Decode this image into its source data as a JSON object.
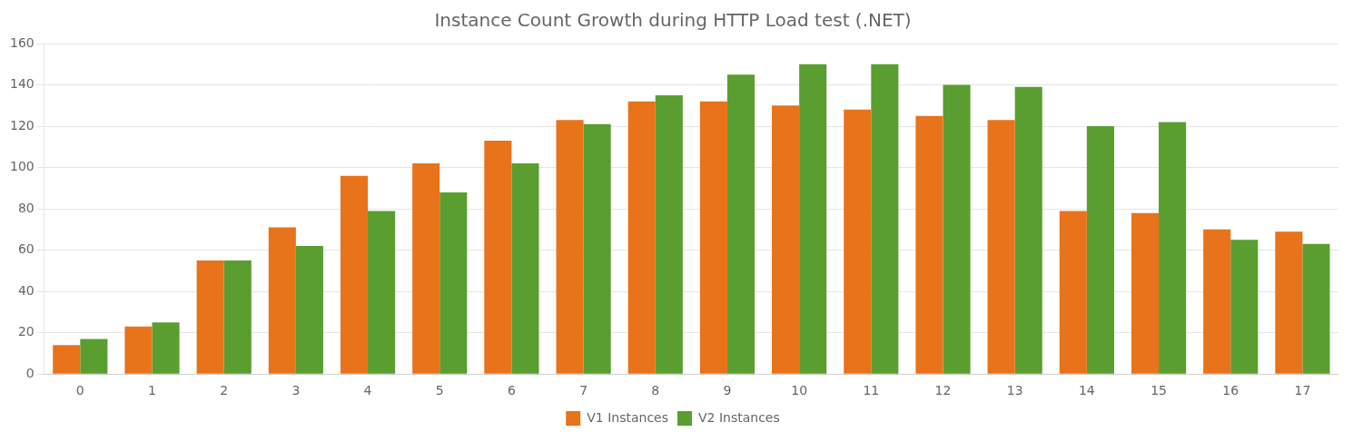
{
  "chart_data": {
    "type": "bar",
    "title": "Instance Count Growth during HTTP Load test (.NET)",
    "categories": [
      0,
      1,
      2,
      3,
      4,
      5,
      6,
      7,
      8,
      9,
      10,
      11,
      12,
      13,
      14,
      15,
      16,
      17
    ],
    "series": [
      {
        "name": "V1 Instances",
        "color": "#E8731A",
        "values": [
          14,
          23,
          55,
          71,
          96,
          102,
          113,
          123,
          132,
          132,
          130,
          128,
          125,
          123,
          79,
          78,
          70,
          69
        ]
      },
      {
        "name": "V2 Instances",
        "color": "#5A9E2F",
        "values": [
          17,
          25,
          55,
          62,
          79,
          88,
          102,
          121,
          135,
          145,
          150,
          150,
          140,
          139,
          120,
          122,
          65,
          63
        ]
      }
    ],
    "ylim": [
      0,
      160
    ],
    "yticks": [
      0,
      20,
      40,
      60,
      80,
      100,
      120,
      140,
      160
    ],
    "grid": "y",
    "legend": "bottom"
  }
}
